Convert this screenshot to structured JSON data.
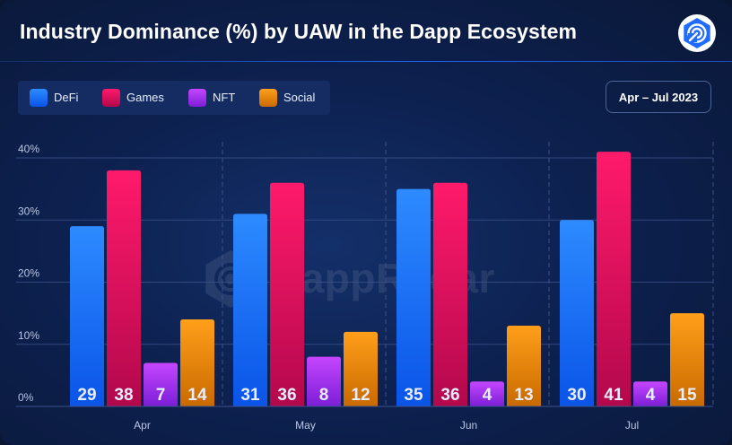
{
  "header": {
    "title": "Industry Dominance (%) by UAW in the Dapp Ecosystem"
  },
  "logo": {
    "icon": "dappradar-logo-icon"
  },
  "period": {
    "label": "Apr – Jul 2023"
  },
  "watermark": {
    "text": "DappRadar"
  },
  "colors": {
    "background": "#0d2150",
    "DeFi": [
      "#2d8bff",
      "#0a54e8"
    ],
    "Games": [
      "#ff1a6b",
      "#b3084c"
    ],
    "NFT": [
      "#c646ff",
      "#7b1ed6"
    ],
    "Social": [
      "#ff9f1a",
      "#c96a00"
    ]
  },
  "chart_data": {
    "type": "bar",
    "title": "Industry Dominance (%) by UAW in the Dapp Ecosystem",
    "categories": [
      "Apr",
      "May",
      "Jun",
      "Jul"
    ],
    "series": [
      {
        "name": "DeFi",
        "values": [
          29,
          31,
          35,
          30
        ],
        "labels": [
          "29",
          "31",
          "35",
          "30"
        ]
      },
      {
        "name": "Games",
        "values": [
          38,
          36,
          36,
          41
        ],
        "labels": [
          "38",
          "36",
          "36",
          "41"
        ]
      },
      {
        "name": "NFT",
        "values": [
          7,
          8,
          4,
          4
        ],
        "labels": [
          "7",
          "8",
          "4",
          "4"
        ]
      },
      {
        "name": "Social",
        "values": [
          14,
          12,
          13,
          15
        ],
        "labels": [
          "14",
          "12",
          "13",
          "15"
        ]
      }
    ],
    "yticks": [
      "0%",
      "10%",
      "20%",
      "30%",
      "40%"
    ],
    "ylim": [
      0,
      40
    ],
    "xlabel": "",
    "ylabel": "",
    "grid": true,
    "legend_position": "top-left"
  }
}
